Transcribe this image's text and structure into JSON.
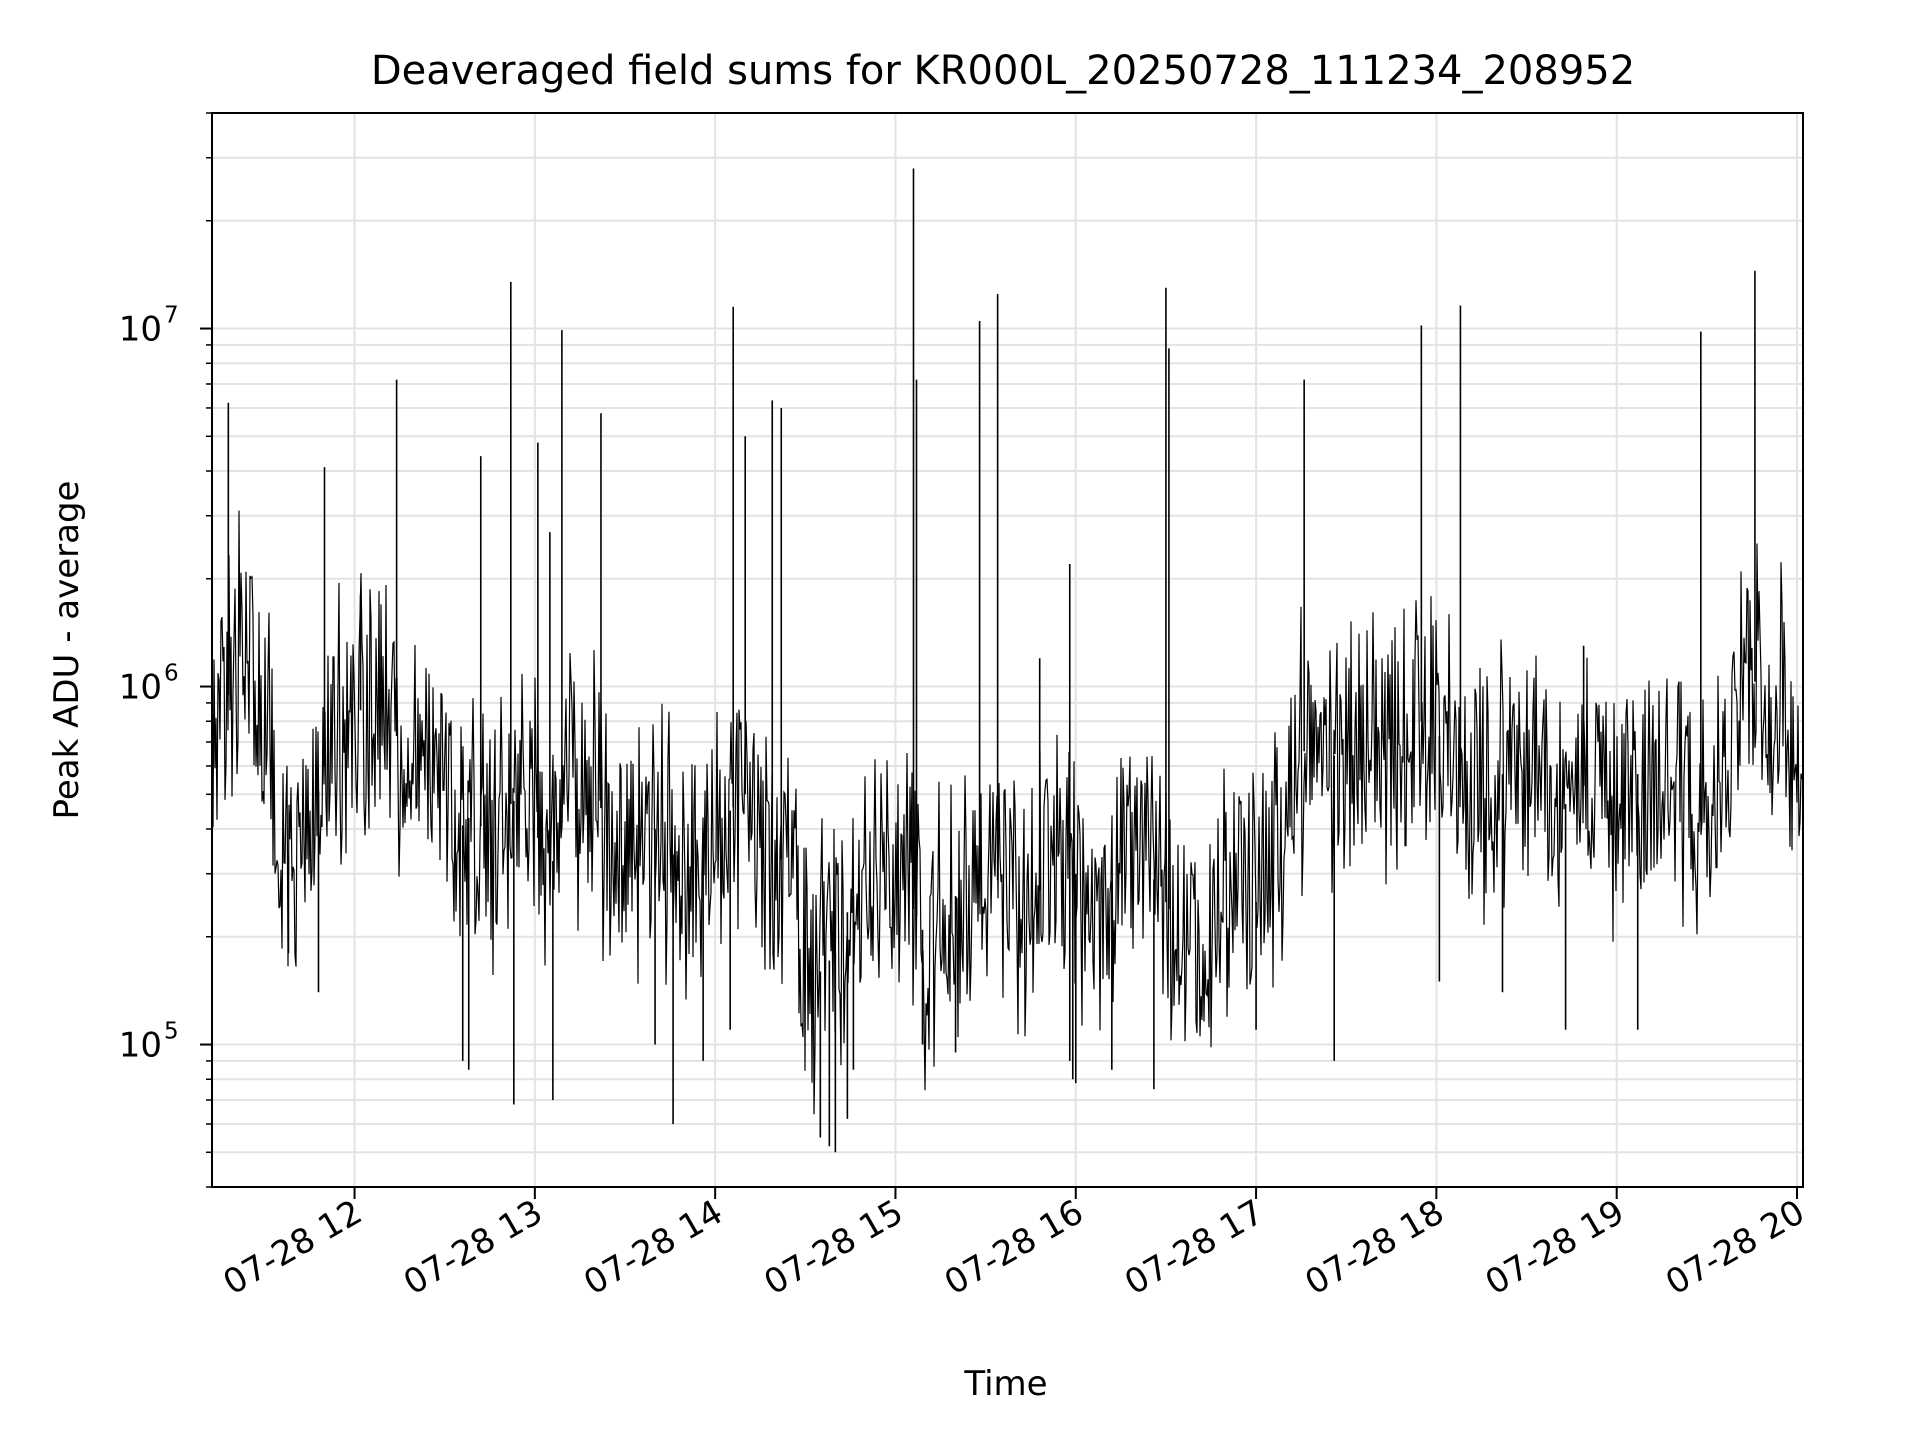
{
  "chart_data": {
    "type": "line",
    "title": "Deaveraged field sums for KR000L_20250728_111234_208952",
    "xlabel": "Time",
    "ylabel": "Peak ADU - average",
    "y_scale": "log",
    "ylim": [
      40000,
      40000000
    ],
    "xlim": [
      "2025-07-28 11:12:34",
      "2025-07-28 20:02:00"
    ],
    "grid": true,
    "line_color": "#000000",
    "grid_color": "#e3e3e3",
    "x_ticks": [
      {
        "time": "2025-07-28 12:00",
        "label": "07-28 12"
      },
      {
        "time": "2025-07-28 13:00",
        "label": "07-28 13"
      },
      {
        "time": "2025-07-28 14:00",
        "label": "07-28 14"
      },
      {
        "time": "2025-07-28 15:00",
        "label": "07-28 15"
      },
      {
        "time": "2025-07-28 16:00",
        "label": "07-28 16"
      },
      {
        "time": "2025-07-28 17:00",
        "label": "07-28 17"
      },
      {
        "time": "2025-07-28 18:00",
        "label": "07-28 18"
      },
      {
        "time": "2025-07-28 19:00",
        "label": "07-28 19"
      },
      {
        "time": "2025-07-28 20:00",
        "label": "07-28 20"
      }
    ],
    "y_ticks": [
      {
        "value": 100000,
        "base": "10",
        "exp": "5"
      },
      {
        "value": 1000000,
        "base": "10",
        "exp": "6"
      },
      {
        "value": 10000000,
        "base": "10",
        "exp": "7"
      }
    ],
    "series": [
      {
        "x": [
          "2025-07-28 11:12:34",
          "2025-07-28 11:20",
          "2025-07-28 11:25",
          "2025-07-28 11:30",
          "2025-07-28 11:35",
          "2025-07-28 11:40",
          "2025-07-28 11:45",
          "2025-07-28 11:50",
          "2025-07-28 11:55",
          "2025-07-28 12:00",
          "2025-07-28 12:05",
          "2025-07-28 12:10",
          "2025-07-28 12:15",
          "2025-07-28 12:20",
          "2025-07-28 12:25",
          "2025-07-28 12:30",
          "2025-07-28 12:35",
          "2025-07-28 12:40",
          "2025-07-28 12:45",
          "2025-07-28 12:50",
          "2025-07-28 12:55",
          "2025-07-28 13:00",
          "2025-07-28 13:05",
          "2025-07-28 13:10",
          "2025-07-28 13:15",
          "2025-07-28 13:20",
          "2025-07-28 13:25",
          "2025-07-28 13:30",
          "2025-07-28 13:35",
          "2025-07-28 13:40",
          "2025-07-28 13:45",
          "2025-07-28 13:50",
          "2025-07-28 13:55",
          "2025-07-28 14:00",
          "2025-07-28 14:05",
          "2025-07-28 14:10",
          "2025-07-28 14:15",
          "2025-07-28 14:20",
          "2025-07-28 14:25",
          "2025-07-28 14:30",
          "2025-07-28 14:35",
          "2025-07-28 14:40",
          "2025-07-28 14:45",
          "2025-07-28 14:50",
          "2025-07-28 14:55",
          "2025-07-28 15:00",
          "2025-07-28 15:05",
          "2025-07-28 15:10",
          "2025-07-28 15:15",
          "2025-07-28 15:20",
          "2025-07-28 15:25",
          "2025-07-28 15:30",
          "2025-07-28 15:35",
          "2025-07-28 15:40",
          "2025-07-28 15:45",
          "2025-07-28 15:50",
          "2025-07-28 15:55",
          "2025-07-28 16:00",
          "2025-07-28 16:05",
          "2025-07-28 16:10",
          "2025-07-28 16:15",
          "2025-07-28 16:20",
          "2025-07-28 16:25",
          "2025-07-28 16:30",
          "2025-07-28 16:35",
          "2025-07-28 16:40",
          "2025-07-28 16:45",
          "2025-07-28 16:50",
          "2025-07-28 16:55",
          "2025-07-28 17:00",
          "2025-07-28 17:05",
          "2025-07-28 17:10",
          "2025-07-28 17:15",
          "2025-07-28 17:20",
          "2025-07-28 17:25",
          "2025-07-28 17:30",
          "2025-07-28 17:35",
          "2025-07-28 17:40",
          "2025-07-28 17:45",
          "2025-07-28 17:50",
          "2025-07-28 17:55",
          "2025-07-28 18:00",
          "2025-07-28 18:05",
          "2025-07-28 18:10",
          "2025-07-28 18:15",
          "2025-07-28 18:20",
          "2025-07-28 18:25",
          "2025-07-28 18:30",
          "2025-07-28 18:35",
          "2025-07-28 18:40",
          "2025-07-28 18:45",
          "2025-07-28 18:50",
          "2025-07-28 18:55",
          "2025-07-28 19:00",
          "2025-07-28 19:05",
          "2025-07-28 19:10",
          "2025-07-28 19:15",
          "2025-07-28 19:20",
          "2025-07-28 19:25",
          "2025-07-28 19:30",
          "2025-07-28 19:35",
          "2025-07-28 19:40",
          "2025-07-28 19:45",
          "2025-07-28 19:50",
          "2025-07-28 19:55",
          "2025-07-28 20:00"
        ],
        "y": [
          500000,
          1200000,
          1300000,
          900000,
          400000,
          300000,
          400000,
          600000,
          800000,
          900000,
          800000,
          850000,
          700000,
          650000,
          600000,
          500000,
          400000,
          450000,
          350000,
          450000,
          500000,
          400000,
          300000,
          450000,
          550000,
          500000,
          400000,
          350000,
          300000,
          400000,
          350000,
          300000,
          350000,
          400000,
          450000,
          500000,
          400000,
          350000,
          300000,
          200000,
          160000,
          180000,
          250000,
          300000,
          280000,
          300000,
          250000,
          200000,
          220000,
          260000,
          300000,
          320000,
          280000,
          250000,
          230000,
          300000,
          320000,
          300000,
          200000,
          250000,
          350000,
          400000,
          300000,
          250000,
          200000,
          180000,
          200000,
          250000,
          300000,
          250000,
          350000,
          500000,
          650000,
          700000,
          650000,
          600000,
          700000,
          650000,
          700000,
          750000,
          800000,
          750000,
          650000,
          600000,
          550000,
          550000,
          600000,
          500000,
          550000,
          500000,
          450000,
          550000,
          600000,
          500000,
          550000,
          600000,
          550000,
          550000,
          450000,
          400000,
          450000,
          900000,
          1100000,
          800000,
          900000,
          700000
        ]
      },
      {
        "name": "",
        "x": [
          "2025-07-28 11:18",
          "2025-07-28 11:50",
          "2025-07-28 12:02",
          "2025-07-28 12:14",
          "2025-07-28 12:42",
          "2025-07-28 12:52",
          "2025-07-28 13:01",
          "2025-07-28 13:05",
          "2025-07-28 13:09",
          "2025-07-28 13:22",
          "2025-07-28 14:06",
          "2025-07-28 14:10",
          "2025-07-28 14:19",
          "2025-07-28 14:22",
          "2025-07-28 15:06",
          "2025-07-28 15:07",
          "2025-07-28 15:28",
          "2025-07-28 15:34",
          "2025-07-28 15:48",
          "2025-07-28 15:58",
          "2025-07-28 16:30",
          "2025-07-28 16:31",
          "2025-07-28 17:16",
          "2025-07-28 17:55",
          "2025-07-28 18:08",
          "2025-07-28 18:49",
          "2025-07-28 19:28",
          "2025-07-28 19:46"
        ],
        "y": [
          6200000,
          4100000,
          1800000,
          7200000,
          4400000,
          13500000,
          4800000,
          2700000,
          9900000,
          5800000,
          11500000,
          5000000,
          6300000,
          6000000,
          28000000,
          7200000,
          10500000,
          12500000,
          1200000,
          2200000,
          13000000,
          8800000,
          7200000,
          10200000,
          11600000,
          1300000,
          9800000,
          14500000
        ]
      },
      {
        "name": "",
        "x": [
          "2025-07-28 11:38",
          "2025-07-28 11:48",
          "2025-07-28 12:36",
          "2025-07-28 12:38",
          "2025-07-28 12:53",
          "2025-07-28 13:06",
          "2025-07-28 13:40",
          "2025-07-28 13:46",
          "2025-07-28 13:56",
          "2025-07-28 14:05",
          "2025-07-28 14:35",
          "2025-07-28 14:38",
          "2025-07-28 14:40",
          "2025-07-28 14:44",
          "2025-07-28 14:46",
          "2025-07-28 15:09",
          "2025-07-28 15:20",
          "2025-07-28 15:58",
          "2025-07-28 15:59",
          "2025-07-28 16:00",
          "2025-07-28 16:12",
          "2025-07-28 16:26",
          "2025-07-28 17:00",
          "2025-07-28 17:26",
          "2025-07-28 18:01",
          "2025-07-28 18:22",
          "2025-07-28 18:43",
          "2025-07-28 19:07"
        ],
        "y": [
          180000,
          140000,
          90000,
          85000,
          68000,
          70000,
          100000,
          60000,
          90000,
          110000,
          55000,
          52000,
          50000,
          62000,
          85000,
          100000,
          95000,
          90000,
          80000,
          78000,
          85000,
          75000,
          110000,
          90000,
          150000,
          140000,
          110000,
          110000
        ]
      }
    ]
  }
}
